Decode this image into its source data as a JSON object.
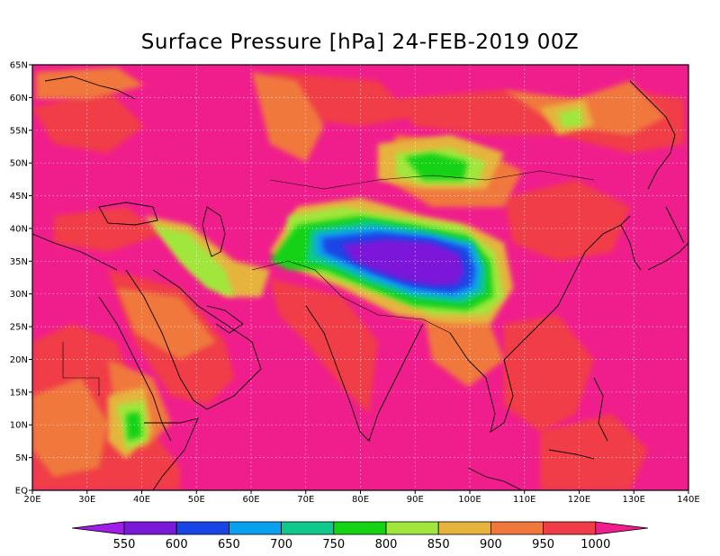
{
  "title": "Surface Pressure [hPa] 24-FEB-2019 00Z",
  "lon_ticks": [
    "20E",
    "30E",
    "40E",
    "50E",
    "60E",
    "70E",
    "80E",
    "90E",
    "100E",
    "110E",
    "120E",
    "130E",
    "140E"
  ],
  "lat_ticks": [
    "EQ",
    "5N",
    "10N",
    "15N",
    "20N",
    "25N",
    "30N",
    "35N",
    "40N",
    "45N",
    "50N",
    "55N",
    "60N",
    "65N"
  ],
  "colorbar": {
    "levels": [
      "550",
      "600",
      "650",
      "700",
      "750",
      "800",
      "850",
      "900",
      "950",
      "1000"
    ],
    "colors": [
      "#a01fe6",
      "#7b19d8",
      "#1a45e6",
      "#0aa0f0",
      "#10c88c",
      "#14d214",
      "#a0e63c",
      "#e6b43c",
      "#f0783c",
      "#f03c46",
      "#f01e8c"
    ]
  },
  "colors": {
    "background_high": "#f01e8c",
    "plateau_low": "#7b19d8"
  }
}
